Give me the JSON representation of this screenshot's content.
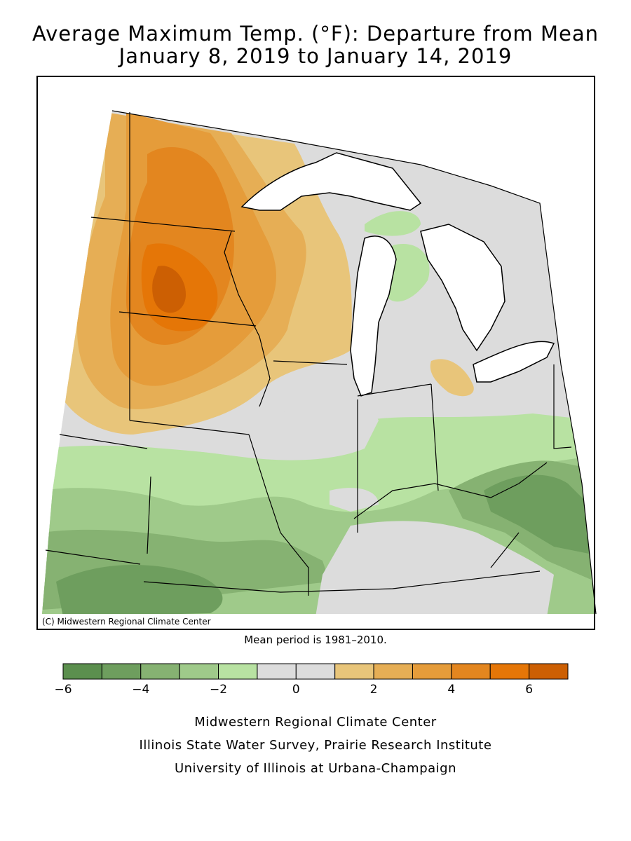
{
  "title_line1": "Average Maximum Temp. (°F): Departure from Mean",
  "title_line2": "January 8, 2019 to January 14, 2019",
  "map_credit": "(C) Midwestern Regional Climate Center",
  "mean_period": "Mean period is 1981–2010.",
  "legend": {
    "colors": [
      "#5b8f4e",
      "#6e9e5e",
      "#86b272",
      "#9fca8a",
      "#b8e2a2",
      "#dcdcdc",
      "#dcdcdc",
      "#e8c57a",
      "#e6ae55",
      "#e59c3a",
      "#e3861f",
      "#e57607",
      "#cc5f03"
    ],
    "bin_edges": [
      -6,
      -5,
      -4,
      -3,
      -2,
      -1,
      0,
      1,
      2,
      3,
      4,
      5,
      6,
      7
    ],
    "tick_labels": [
      {
        "value": -6,
        "label": "−6"
      },
      {
        "value": -4,
        "label": "−4"
      },
      {
        "value": -2,
        "label": "−2"
      },
      {
        "value": 0,
        "label": "0"
      },
      {
        "value": 2,
        "label": "2"
      },
      {
        "value": 4,
        "label": "4"
      },
      {
        "value": 6,
        "label": "6"
      }
    ]
  },
  "footer": {
    "line1": "Midwestern Regional Climate Center",
    "line2": "Illinois State Water Survey, Prairie Research Institute",
    "line3": "University of Illinois at Urbana-Champaign"
  }
}
